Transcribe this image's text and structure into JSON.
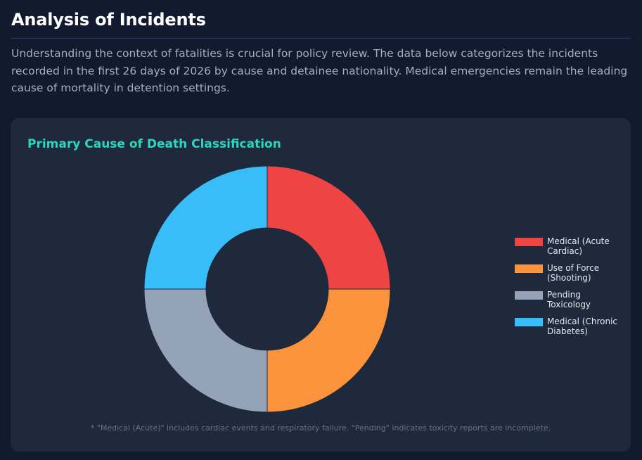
{
  "section": {
    "title": "Analysis of Incidents",
    "intro": "Understanding the context of fatalities is crucial for policy review. The data below categorizes the incidents recorded in the first 26 days of 2026 by cause and detainee nationality. Medical emergencies remain the leading cause of mortality in detention settings."
  },
  "card": {
    "title": "Primary Cause of Death Classification",
    "footnote": "* \"Medical (Acute)\" includes cardiac events and respiratory failure. \"Pending\" indicates toxicity reports are incomplete."
  },
  "chart_data": {
    "type": "pie",
    "donut": true,
    "title": "Primary Cause of Death Classification",
    "legend_position": "right",
    "slices": [
      {
        "label": "Medical (Acute\nCardiac)",
        "value": 1,
        "color": "#ef4444"
      },
      {
        "label": "Use of Force\n(Shooting)",
        "value": 1,
        "color": "#fb923c"
      },
      {
        "label": "Pending\nToxicology",
        "value": 1,
        "color": "#94a3b8"
      },
      {
        "label": "Medical (Chronic\nDiabetes)",
        "value": 1,
        "color": "#38bdf8"
      }
    ]
  }
}
